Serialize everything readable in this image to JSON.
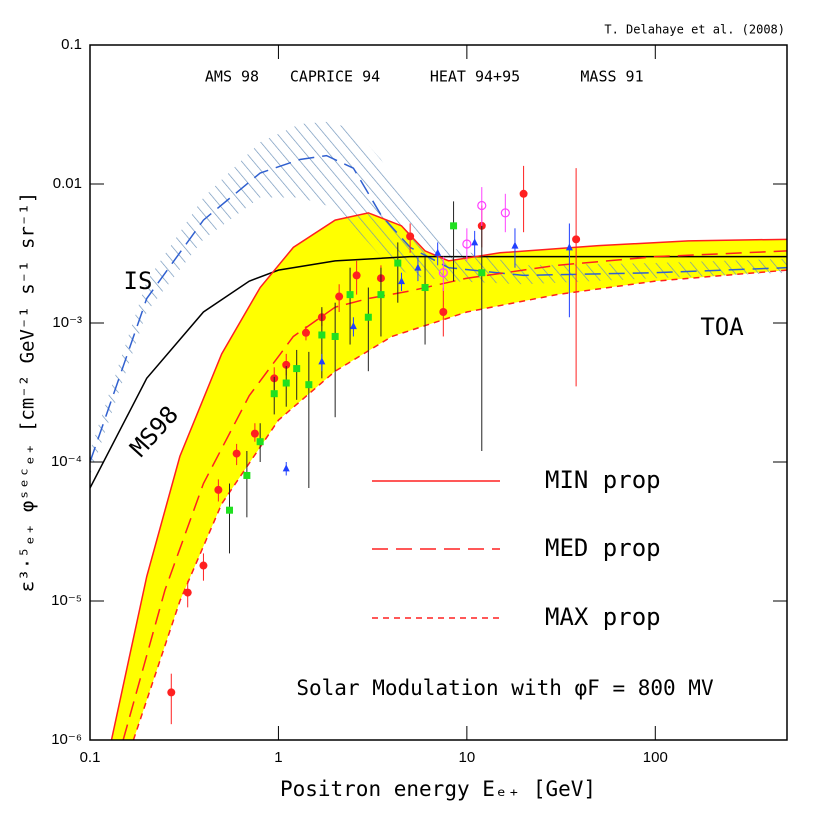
{
  "chart_data": {
    "type": "scatter",
    "credit": "T. Delahaye et al. (2008)",
    "xlabel": "Positron energy Eₑ₊  [GeV]",
    "ylabel": "ε³·⁵ₑ₊ φˢᵉᶜₑ₊  [cm⁻² GeV⁻¹ s⁻¹ sr⁻¹]",
    "xscale": "log",
    "yscale": "log",
    "xlim": [
      0.1,
      500
    ],
    "ylim": [
      1e-06,
      0.1
    ],
    "xticks": [
      0.1,
      1,
      10,
      100
    ],
    "yticks": [
      {
        "value": 1e-06,
        "label": "10⁻⁶"
      },
      {
        "value": 1e-05,
        "label": "10⁻⁵"
      },
      {
        "value": 0.0001,
        "label": "10⁻⁴"
      },
      {
        "value": 0.001,
        "label": "10⁻³"
      },
      0.01,
      0.1
    ],
    "series": [
      {
        "name": "AMS 98",
        "color": "#ff2020",
        "marker": "circle",
        "x": [
          0.27,
          0.33,
          0.4,
          0.48,
          0.6,
          0.75,
          0.95,
          1.1,
          1.4,
          1.7,
          2.1,
          2.6,
          3.5,
          5,
          7.5,
          12,
          20,
          38
        ],
        "values": [
          2.2e-06,
          1.15e-05,
          1.8e-05,
          6.3e-05,
          0.000115,
          0.00016,
          0.0004,
          0.0005,
          0.00085,
          0.0011,
          0.00155,
          0.0022,
          0.0021,
          0.0042,
          0.0012,
          0.005,
          0.0085,
          0.004
        ],
        "lo": [
          1.3e-06,
          9e-06,
          1.4e-05,
          5.2e-05,
          9.5e-05,
          0.00014,
          0.00033,
          0.00042,
          0.00075,
          0.00095,
          0.0012,
          0.0016,
          0.0017,
          0.0032,
          0.0008,
          0.0035,
          0.0045,
          0.00035
        ],
        "hi": [
          3e-06,
          1.4e-05,
          2.2e-05,
          7.5e-05,
          0.000135,
          0.00019,
          0.00048,
          0.0006,
          0.00095,
          0.00125,
          0.0019,
          0.0028,
          0.0026,
          0.0052,
          0.0018,
          0.007,
          0.0135,
          0.013
        ]
      },
      {
        "name": "CAPRICE 94",
        "color": "#20e020",
        "marker": "square",
        "x": [
          0.55,
          0.68,
          0.8,
          0.95,
          1.1,
          1.25,
          1.45,
          1.7,
          2,
          2.4,
          3,
          3.5,
          4.3,
          6,
          8.5,
          12
        ],
        "values": [
          4.5e-05,
          8e-05,
          0.00014,
          0.00031,
          0.00037,
          0.00047,
          0.00036,
          0.00082,
          0.0008,
          0.0016,
          0.0011,
          0.0016,
          0.0027,
          0.0018,
          0.005,
          0.0023
        ],
        "lo": [
          2.2e-05,
          4e-05,
          0.0001,
          0.00022,
          0.00025,
          0.00028,
          6.5e-05,
          0.0004,
          0.00021,
          0.0007,
          0.00045,
          0.0008,
          0.0014,
          0.0007,
          0.002,
          0.00012
        ],
        "hi": [
          7e-05,
          0.00012,
          0.00019,
          0.00041,
          0.00049,
          0.00064,
          0.00062,
          0.0013,
          0.0014,
          0.0025,
          0.0018,
          0.0025,
          0.0038,
          0.003,
          0.0075,
          0.005
        ]
      },
      {
        "name": "HEAT 94+95",
        "color": "#2040ff",
        "marker": "triangle",
        "x": [
          1.1,
          1.7,
          2.5,
          4.5,
          5.5,
          7,
          11,
          18,
          35
        ],
        "values": [
          9e-05,
          0.00053,
          0.00095,
          0.002,
          0.0025,
          0.0032,
          0.0038,
          0.0036,
          0.0035
        ],
        "lo": [
          8e-05,
          0.00045,
          0.0008,
          0.0017,
          0.002,
          0.0026,
          0.003,
          0.0025,
          0.0011
        ],
        "hi": [
          0.0001,
          0.0006,
          0.0011,
          0.0023,
          0.003,
          0.0038,
          0.0046,
          0.0048,
          0.0052
        ]
      },
      {
        "name": "MASS 91",
        "color": "#ff40ff",
        "marker": "open-circle",
        "x": [
          7.5,
          10,
          12,
          16
        ],
        "values": [
          0.0023,
          0.0037,
          0.007,
          0.0062
        ],
        "lo": [
          0.0017,
          0.0028,
          0.005,
          0.0045
        ],
        "hi": [
          0.003,
          0.0048,
          0.0095,
          0.0085
        ]
      }
    ],
    "curves": [
      {
        "name": "MIN prop",
        "color": "#ff2020",
        "dash": "solid",
        "x": [
          0.13,
          0.2,
          0.3,
          0.5,
          0.8,
          1.2,
          2,
          3,
          4.5,
          6,
          8,
          15,
          50,
          150,
          500
        ],
        "values": [
          1e-06,
          1.5e-05,
          0.00011,
          0.0006,
          0.0018,
          0.0035,
          0.0055,
          0.0062,
          0.005,
          0.0033,
          0.0028,
          0.0032,
          0.0036,
          0.0039,
          0.004
        ]
      },
      {
        "name": "MED prop",
        "color": "#ff2020",
        "dash": "long",
        "x": [
          0.15,
          0.25,
          0.4,
          0.7,
          1.2,
          2,
          3,
          5,
          10,
          30,
          100,
          500
        ],
        "values": [
          1e-06,
          1.2e-05,
          7e-05,
          0.0003,
          0.0008,
          0.0013,
          0.0015,
          0.0017,
          0.0021,
          0.0026,
          0.003,
          0.0033
        ]
      },
      {
        "name": "MAX prop",
        "color": "#ff2020",
        "dash": "short",
        "x": [
          0.17,
          0.3,
          0.5,
          1,
          2,
          4,
          10,
          30,
          100,
          500
        ],
        "values": [
          1e-06,
          1e-05,
          5e-05,
          0.0002,
          0.00045,
          0.0008,
          0.0012,
          0.0016,
          0.002,
          0.0024
        ]
      }
    ],
    "band_color": "#ffff00",
    "ms98": {
      "label": "MS98",
      "color": "#000000",
      "x": [
        0.1,
        0.2,
        0.4,
        0.7,
        1,
        2,
        5,
        20,
        500
      ],
      "values": [
        6.5e-05,
        0.0004,
        0.0012,
        0.002,
        0.0024,
        0.0028,
        0.003,
        0.003,
        0.003
      ]
    },
    "is": {
      "label": "IS",
      "color": "#3060d0",
      "hatch_color": "#6a90b8",
      "x": [
        0.1,
        0.2,
        0.4,
        0.8,
        1.3,
        1.8,
        2.5,
        3.5,
        5,
        8,
        20,
        100,
        500
      ],
      "values": [
        0.0001,
        0.0015,
        0.0055,
        0.012,
        0.015,
        0.016,
        0.013,
        0.006,
        0.0035,
        0.0025,
        0.0022,
        0.0023,
        0.0025
      ],
      "upper": [
        0.00012,
        0.002,
        0.008,
        0.02,
        0.027,
        0.028,
        0.025,
        0.015,
        0.007,
        0.0035,
        0.0026,
        0.0027,
        0.0029
      ],
      "lower": [
        8e-05,
        0.0012,
        0.004,
        0.008,
        0.008,
        0.007,
        0.005,
        0.003,
        0.0022,
        0.002,
        0.0019,
        0.0021,
        0.0023
      ]
    },
    "annotations": {
      "toa": "TOA",
      "solar": "Solar Modulation with φF = 800 MV"
    }
  }
}
